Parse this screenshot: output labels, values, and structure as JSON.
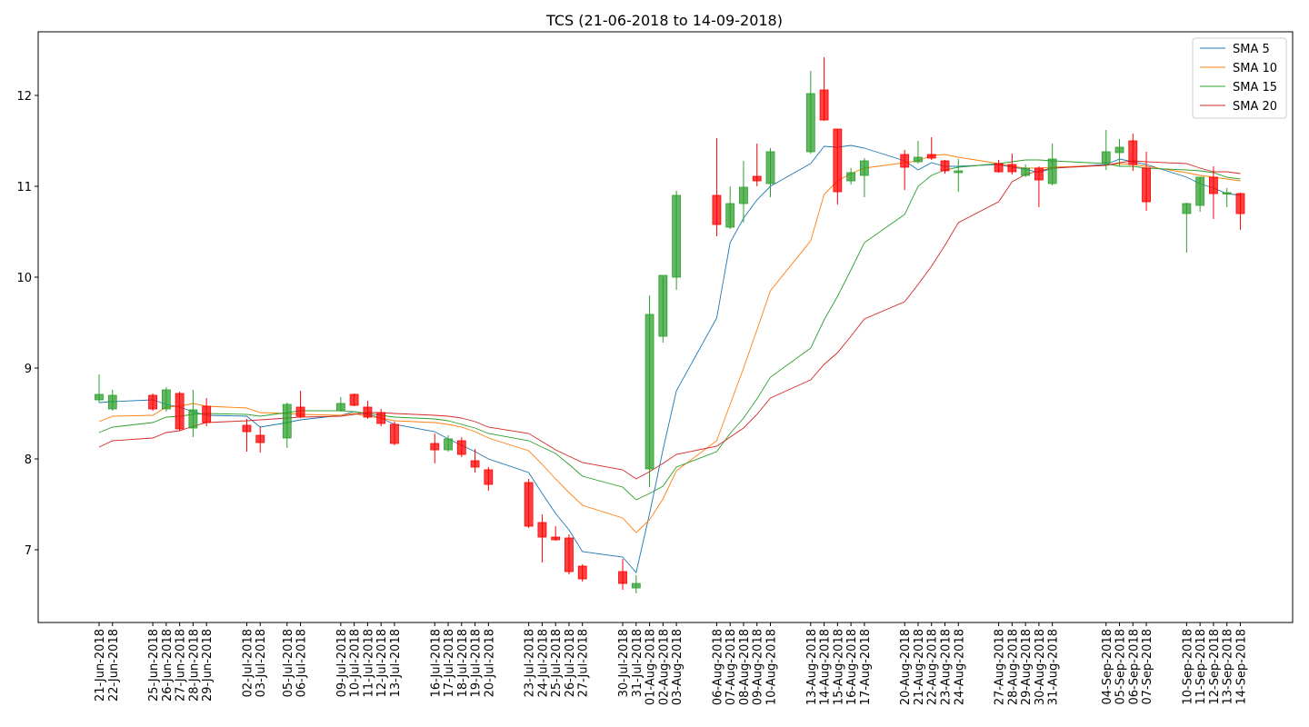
{
  "chart_data": {
    "type": "candlestick",
    "title": "TCS (21-06-2018 to 14-09-2018)",
    "xlabel": "",
    "ylabel": "",
    "ylim": [
      6.2,
      12.7
    ],
    "y_ticks": [
      7,
      8,
      9,
      10,
      11,
      12
    ],
    "grid": false,
    "legend_position": "top-right",
    "colors": {
      "up": "#2ca02c",
      "down": "#ff0000"
    },
    "dates": [
      "2018-06-21",
      "2018-06-22",
      "2018-06-25",
      "2018-06-26",
      "2018-06-27",
      "2018-06-28",
      "2018-06-29",
      "2018-07-02",
      "2018-07-03",
      "2018-07-05",
      "2018-07-06",
      "2018-07-09",
      "2018-07-10",
      "2018-07-11",
      "2018-07-12",
      "2018-07-13",
      "2018-07-16",
      "2018-07-17",
      "2018-07-18",
      "2018-07-19",
      "2018-07-20",
      "2018-07-23",
      "2018-07-24",
      "2018-07-25",
      "2018-07-26",
      "2018-07-27",
      "2018-07-30",
      "2018-07-31",
      "2018-08-01",
      "2018-08-02",
      "2018-08-03",
      "2018-08-06",
      "2018-08-07",
      "2018-08-08",
      "2018-08-09",
      "2018-08-10",
      "2018-08-13",
      "2018-08-14",
      "2018-08-15",
      "2018-08-16",
      "2018-08-17",
      "2018-08-20",
      "2018-08-21",
      "2018-08-22",
      "2018-08-23",
      "2018-08-24",
      "2018-08-27",
      "2018-08-28",
      "2018-08-29",
      "2018-08-30",
      "2018-08-31",
      "2018-09-04",
      "2018-09-05",
      "2018-09-06",
      "2018-09-07",
      "2018-09-10",
      "2018-09-11",
      "2018-09-12",
      "2018-09-13",
      "2018-09-14"
    ],
    "categories": [
      "21-Jun-2018",
      "22-Jun-2018",
      "25-Jun-2018",
      "26-Jun-2018",
      "27-Jun-2018",
      "28-Jun-2018",
      "29-Jun-2018",
      "02-Jul-2018",
      "03-Jul-2018",
      "05-Jul-2018",
      "06-Jul-2018",
      "09-Jul-2018",
      "10-Jul-2018",
      "11-Jul-2018",
      "12-Jul-2018",
      "13-Jul-2018",
      "16-Jul-2018",
      "17-Jul-2018",
      "18-Jul-2018",
      "19-Jul-2018",
      "20-Jul-2018",
      "23-Jul-2018",
      "24-Jul-2018",
      "25-Jul-2018",
      "26-Jul-2018",
      "27-Jul-2018",
      "30-Jul-2018",
      "31-Jul-2018",
      "01-Aug-2018",
      "02-Aug-2018",
      "03-Aug-2018",
      "06-Aug-2018",
      "07-Aug-2018",
      "08-Aug-2018",
      "09-Aug-2018",
      "10-Aug-2018",
      "13-Aug-2018",
      "14-Aug-2018",
      "15-Aug-2018",
      "16-Aug-2018",
      "17-Aug-2018",
      "20-Aug-2018",
      "21-Aug-2018",
      "22-Aug-2018",
      "23-Aug-2018",
      "24-Aug-2018",
      "27-Aug-2018",
      "28-Aug-2018",
      "29-Aug-2018",
      "30-Aug-2018",
      "31-Aug-2018",
      "04-Sep-2018",
      "05-Sep-2018",
      "06-Sep-2018",
      "07-Sep-2018",
      "10-Sep-2018",
      "11-Sep-2018",
      "12-Sep-2018",
      "13-Sep-2018",
      "14-Sep-2018"
    ],
    "candles": [
      {
        "o": 8.65,
        "h": 8.93,
        "l": 8.62,
        "c": 8.71
      },
      {
        "o": 8.55,
        "h": 8.76,
        "l": 8.53,
        "c": 8.7
      },
      {
        "o": 8.7,
        "h": 8.72,
        "l": 8.53,
        "c": 8.55
      },
      {
        "o": 8.55,
        "h": 8.79,
        "l": 8.52,
        "c": 8.76
      },
      {
        "o": 8.72,
        "h": 8.74,
        "l": 8.31,
        "c": 8.33
      },
      {
        "o": 8.34,
        "h": 8.76,
        "l": 8.24,
        "c": 8.54
      },
      {
        "o": 8.58,
        "h": 8.67,
        "l": 8.36,
        "c": 8.4
      },
      {
        "o": 8.37,
        "h": 8.44,
        "l": 8.08,
        "c": 8.3
      },
      {
        "o": 8.26,
        "h": 8.35,
        "l": 8.07,
        "c": 8.18
      },
      {
        "o": 8.23,
        "h": 8.62,
        "l": 8.12,
        "c": 8.6
      },
      {
        "o": 8.57,
        "h": 8.75,
        "l": 8.45,
        "c": 8.47
      },
      {
        "o": 8.53,
        "h": 8.68,
        "l": 8.52,
        "c": 8.61
      },
      {
        "o": 8.71,
        "h": 8.72,
        "l": 8.58,
        "c": 8.59
      },
      {
        "o": 8.57,
        "h": 8.64,
        "l": 8.44,
        "c": 8.46
      },
      {
        "o": 8.51,
        "h": 8.55,
        "l": 8.36,
        "c": 8.39
      },
      {
        "o": 8.38,
        "h": 8.41,
        "l": 8.15,
        "c": 8.17
      },
      {
        "o": 8.17,
        "h": 8.28,
        "l": 7.95,
        "c": 8.1
      },
      {
        "o": 8.1,
        "h": 8.26,
        "l": 8.08,
        "c": 8.22
      },
      {
        "o": 8.2,
        "h": 8.24,
        "l": 8.02,
        "c": 8.05
      },
      {
        "o": 7.98,
        "h": 8.11,
        "l": 7.85,
        "c": 7.91
      },
      {
        "o": 7.88,
        "h": 7.91,
        "l": 7.65,
        "c": 7.72
      },
      {
        "o": 7.74,
        "h": 7.78,
        "l": 7.24,
        "c": 7.26
      },
      {
        "o": 7.3,
        "h": 7.39,
        "l": 6.86,
        "c": 7.14
      },
      {
        "o": 7.14,
        "h": 7.26,
        "l": 7.1,
        "c": 7.11
      },
      {
        "o": 7.13,
        "h": 7.17,
        "l": 6.73,
        "c": 6.76
      },
      {
        "o": 6.82,
        "h": 6.84,
        "l": 6.65,
        "c": 6.68
      },
      {
        "o": 6.76,
        "h": 6.9,
        "l": 6.56,
        "c": 6.63
      },
      {
        "o": 6.58,
        "h": 6.72,
        "l": 6.52,
        "c": 6.63
      },
      {
        "o": 7.89,
        "h": 9.8,
        "l": 7.69,
        "c": 9.59
      },
      {
        "o": 9.35,
        "h": 10.0,
        "l": 9.28,
        "c": 10.02
      },
      {
        "o": 10.0,
        "h": 10.95,
        "l": 9.86,
        "c": 10.9
      },
      {
        "o": 10.9,
        "h": 11.53,
        "l": 10.45,
        "c": 10.58
      },
      {
        "o": 10.55,
        "h": 11.0,
        "l": 10.53,
        "c": 10.81
      },
      {
        "o": 10.81,
        "h": 11.28,
        "l": 10.6,
        "c": 10.99
      },
      {
        "o": 11.11,
        "h": 11.47,
        "l": 11.0,
        "c": 11.06
      },
      {
        "o": 11.03,
        "h": 11.42,
        "l": 10.88,
        "c": 11.38
      },
      {
        "o": 11.38,
        "h": 12.27,
        "l": 11.36,
        "c": 12.02
      },
      {
        "o": 12.06,
        "h": 12.42,
        "l": 11.72,
        "c": 11.73
      },
      {
        "o": 11.63,
        "h": 11.63,
        "l": 10.8,
        "c": 10.94
      },
      {
        "o": 11.06,
        "h": 11.2,
        "l": 11.02,
        "c": 11.15
      },
      {
        "o": 11.12,
        "h": 11.31,
        "l": 10.88,
        "c": 11.28
      },
      {
        "o": 11.35,
        "h": 11.4,
        "l": 10.96,
        "c": 11.21
      },
      {
        "o": 11.27,
        "h": 11.5,
        "l": 11.25,
        "c": 11.32
      },
      {
        "o": 11.35,
        "h": 11.54,
        "l": 11.29,
        "c": 11.31
      },
      {
        "o": 11.28,
        "h": 11.29,
        "l": 11.14,
        "c": 11.17
      },
      {
        "o": 11.15,
        "h": 11.3,
        "l": 10.94,
        "c": 11.17
      },
      {
        "o": 11.25,
        "h": 11.29,
        "l": 11.15,
        "c": 11.16
      },
      {
        "o": 11.24,
        "h": 11.36,
        "l": 11.13,
        "c": 11.16
      },
      {
        "o": 11.12,
        "h": 11.24,
        "l": 11.1,
        "c": 11.2
      },
      {
        "o": 11.2,
        "h": 11.22,
        "l": 10.77,
        "c": 11.07
      },
      {
        "o": 11.03,
        "h": 11.47,
        "l": 11.01,
        "c": 11.3
      },
      {
        "o": 11.26,
        "h": 11.62,
        "l": 11.18,
        "c": 11.38
      },
      {
        "o": 11.37,
        "h": 11.52,
        "l": 11.22,
        "c": 11.43
      },
      {
        "o": 11.5,
        "h": 11.58,
        "l": 11.17,
        "c": 11.24
      },
      {
        "o": 11.2,
        "h": 11.38,
        "l": 10.73,
        "c": 10.83
      },
      {
        "o": 10.7,
        "h": 10.82,
        "l": 10.27,
        "c": 10.81
      },
      {
        "o": 10.79,
        "h": 11.1,
        "l": 10.72,
        "c": 11.1
      },
      {
        "o": 11.1,
        "h": 11.22,
        "l": 10.64,
        "c": 10.92
      },
      {
        "o": 10.92,
        "h": 10.98,
        "l": 10.77,
        "c": 10.93
      },
      {
        "o": 10.92,
        "h": 10.93,
        "l": 10.52,
        "c": 10.7
      }
    ],
    "series": [
      {
        "name": "SMA 5",
        "color": "#1f77b4",
        "values": [
          8.62,
          8.63,
          8.65,
          8.6,
          8.57,
          8.52,
          8.48,
          8.47,
          8.35,
          8.4,
          8.43,
          8.48,
          8.52,
          8.49,
          8.45,
          8.38,
          8.3,
          8.22,
          8.15,
          8.08,
          8.0,
          7.85,
          7.62,
          7.4,
          7.22,
          6.98,
          6.92,
          6.75,
          7.4,
          8.1,
          8.75,
          9.55,
          10.38,
          10.65,
          10.85,
          11.0,
          11.25,
          11.44,
          11.43,
          11.45,
          11.42,
          11.28,
          11.18,
          11.26,
          11.22,
          11.22,
          11.24,
          11.21,
          11.19,
          11.15,
          11.2,
          11.24,
          11.3,
          11.27,
          11.24,
          11.1,
          11.03,
          10.98,
          10.92,
          10.9
        ]
      },
      {
        "name": "SMA 10",
        "color": "#ff7f0e",
        "values": [
          8.41,
          8.47,
          8.48,
          8.57,
          8.58,
          8.61,
          8.58,
          8.56,
          8.51,
          8.5,
          8.49,
          8.48,
          8.5,
          8.47,
          8.45,
          8.42,
          8.4,
          8.38,
          8.35,
          8.3,
          8.23,
          8.09,
          7.94,
          7.78,
          7.63,
          7.49,
          7.35,
          7.19,
          7.33,
          7.56,
          7.87,
          8.2,
          8.6,
          9.0,
          9.42,
          9.85,
          10.4,
          10.91,
          11.06,
          11.14,
          11.2,
          11.26,
          11.28,
          11.34,
          11.35,
          11.32,
          11.25,
          11.22,
          11.2,
          11.2,
          11.21,
          11.23,
          11.25,
          11.24,
          11.22,
          11.15,
          11.12,
          11.1,
          11.08,
          11.06
        ]
      },
      {
        "name": "SMA 15",
        "color": "#2ca02c",
        "values": [
          8.29,
          8.35,
          8.4,
          8.46,
          8.47,
          8.49,
          8.5,
          8.49,
          8.47,
          8.51,
          8.53,
          8.53,
          8.52,
          8.5,
          8.48,
          8.46,
          8.44,
          8.42,
          8.38,
          8.34,
          8.28,
          8.2,
          8.13,
          8.06,
          7.94,
          7.81,
          7.69,
          7.55,
          7.62,
          7.7,
          7.91,
          8.08,
          8.28,
          8.45,
          8.66,
          8.9,
          9.22,
          9.53,
          9.79,
          10.08,
          10.38,
          10.69,
          11.0,
          11.12,
          11.18,
          11.21,
          11.25,
          11.27,
          11.29,
          11.29,
          11.28,
          11.25,
          11.22,
          11.22,
          11.2,
          11.18,
          11.17,
          11.15,
          11.1,
          11.08
        ]
      },
      {
        "name": "SMA 20",
        "color": "#d62728",
        "values": [
          8.13,
          8.2,
          8.23,
          8.29,
          8.31,
          8.36,
          8.4,
          8.42,
          8.43,
          8.45,
          8.46,
          8.47,
          8.49,
          8.51,
          8.51,
          8.5,
          8.48,
          8.47,
          8.45,
          8.41,
          8.35,
          8.28,
          8.19,
          8.1,
          8.03,
          7.96,
          7.88,
          7.78,
          7.86,
          7.95,
          8.05,
          8.14,
          8.24,
          8.34,
          8.49,
          8.67,
          8.87,
          9.04,
          9.17,
          9.35,
          9.54,
          9.73,
          9.92,
          10.12,
          10.35,
          10.6,
          10.83,
          11.05,
          11.13,
          11.17,
          11.2,
          11.23,
          11.26,
          11.28,
          11.27,
          11.25,
          11.2,
          11.16,
          11.16,
          11.14
        ]
      }
    ]
  }
}
